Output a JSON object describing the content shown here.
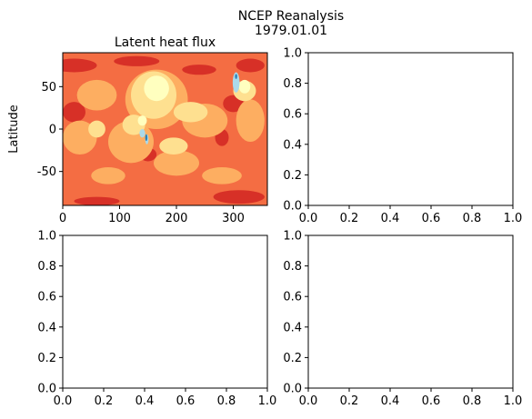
{
  "figure": {
    "suptitle_line1": "NCEP Reanalysis",
    "suptitle_line2": "1979.01.01"
  },
  "chart_data": [
    {
      "type": "heatmap",
      "title": "Latent heat flux",
      "xlabel": "",
      "ylabel": "Latitude",
      "xlim": [
        0,
        360
      ],
      "ylim": [
        -90,
        90
      ],
      "xticks": [
        0,
        100,
        200,
        300
      ],
      "yticks": [
        -50,
        0,
        50
      ],
      "colormap": [
        "#2b83ba",
        "#abd9e9",
        "#ffffbf",
        "#fee090",
        "#fdae61",
        "#f46d43",
        "#d73027"
      ],
      "patches": [
        {
          "color": "#d73027",
          "cx": 20,
          "cy": 75,
          "rx": 40,
          "ry": 8
        },
        {
          "color": "#d73027",
          "cx": 130,
          "cy": 80,
          "rx": 40,
          "ry": 6
        },
        {
          "color": "#d73027",
          "cx": 240,
          "cy": 70,
          "rx": 30,
          "ry": 6
        },
        {
          "color": "#d73027",
          "cx": 330,
          "cy": 75,
          "rx": 25,
          "ry": 8
        },
        {
          "color": "#d73027",
          "cx": 300,
          "cy": 30,
          "rx": 18,
          "ry": 10
        },
        {
          "color": "#d73027",
          "cx": 20,
          "cy": 20,
          "rx": 20,
          "ry": 12
        },
        {
          "color": "#d73027",
          "cx": 150,
          "cy": -30,
          "rx": 15,
          "ry": 8
        },
        {
          "color": "#d73027",
          "cx": 280,
          "cy": -10,
          "rx": 12,
          "ry": 10
        },
        {
          "color": "#d73027",
          "cx": 310,
          "cy": -80,
          "rx": 45,
          "ry": 8
        },
        {
          "color": "#d73027",
          "cx": 60,
          "cy": -85,
          "rx": 40,
          "ry": 5
        },
        {
          "color": "#fdae61",
          "cx": 165,
          "cy": 35,
          "rx": 55,
          "ry": 35
        },
        {
          "color": "#fdae61",
          "cx": 60,
          "cy": 40,
          "rx": 35,
          "ry": 18
        },
        {
          "color": "#fdae61",
          "cx": 250,
          "cy": 10,
          "rx": 40,
          "ry": 20
        },
        {
          "color": "#fdae61",
          "cx": 120,
          "cy": -15,
          "rx": 40,
          "ry": 25
        },
        {
          "color": "#fdae61",
          "cx": 30,
          "cy": -10,
          "rx": 30,
          "ry": 20
        },
        {
          "color": "#fdae61",
          "cx": 200,
          "cy": -40,
          "rx": 40,
          "ry": 15
        },
        {
          "color": "#fdae61",
          "cx": 330,
          "cy": 10,
          "rx": 25,
          "ry": 25
        },
        {
          "color": "#fdae61",
          "cx": 80,
          "cy": -55,
          "rx": 30,
          "ry": 10
        },
        {
          "color": "#fdae61",
          "cx": 280,
          "cy": -55,
          "rx": 35,
          "ry": 10
        },
        {
          "color": "#fee090",
          "cx": 160,
          "cy": 40,
          "rx": 40,
          "ry": 28
        },
        {
          "color": "#fee090",
          "cx": 225,
          "cy": 20,
          "rx": 30,
          "ry": 12
        },
        {
          "color": "#fee090",
          "cx": 125,
          "cy": 5,
          "rx": 20,
          "ry": 12
        },
        {
          "color": "#fee090",
          "cx": 195,
          "cy": -20,
          "rx": 25,
          "ry": 10
        },
        {
          "color": "#fee090",
          "cx": 60,
          "cy": 0,
          "rx": 15,
          "ry": 10
        },
        {
          "color": "#fee090",
          "cx": 320,
          "cy": 45,
          "rx": 20,
          "ry": 12
        },
        {
          "color": "#ffffbf",
          "cx": 165,
          "cy": 48,
          "rx": 22,
          "ry": 15
        },
        {
          "color": "#ffffbf",
          "cx": 140,
          "cy": 10,
          "rx": 8,
          "ry": 6
        },
        {
          "color": "#ffffbf",
          "cx": 320,
          "cy": 50,
          "rx": 10,
          "ry": 8
        },
        {
          "color": "#abd9e9",
          "cx": 305,
          "cy": 55,
          "rx": 6,
          "ry": 12
        },
        {
          "color": "#abd9e9",
          "cx": 140,
          "cy": -5,
          "rx": 5,
          "ry": 5
        },
        {
          "color": "#abd9e9",
          "cx": 148,
          "cy": -12,
          "rx": 3,
          "ry": 6
        },
        {
          "color": "#2b83ba",
          "cx": 305,
          "cy": 62,
          "rx": 2,
          "ry": 3
        },
        {
          "color": "#2b83ba",
          "cx": 147,
          "cy": -10,
          "rx": 2,
          "ry": 4
        }
      ]
    },
    {
      "type": "line",
      "title": "",
      "xlim": [
        0,
        1
      ],
      "ylim": [
        0,
        1
      ],
      "xticks": [
        "0.0",
        "0.2",
        "0.4",
        "0.6",
        "0.8",
        "1.0"
      ],
      "yticks": [
        "0.0",
        "0.2",
        "0.4",
        "0.6",
        "0.8",
        "1.0"
      ],
      "series": []
    },
    {
      "type": "line",
      "title": "",
      "xlim": [
        0,
        1
      ],
      "ylim": [
        0,
        1
      ],
      "xticks": [
        "0.0",
        "0.2",
        "0.4",
        "0.6",
        "0.8",
        "1.0"
      ],
      "yticks": [
        "0.0",
        "0.2",
        "0.4",
        "0.6",
        "0.8",
        "1.0"
      ],
      "series": []
    },
    {
      "type": "line",
      "title": "",
      "xlim": [
        0,
        1
      ],
      "ylim": [
        0,
        1
      ],
      "xticks": [
        "0.0",
        "0.2",
        "0.4",
        "0.6",
        "0.8",
        "1.0"
      ],
      "yticks": [
        "0.0",
        "0.2",
        "0.4",
        "0.6",
        "0.8",
        "1.0"
      ],
      "series": []
    }
  ]
}
